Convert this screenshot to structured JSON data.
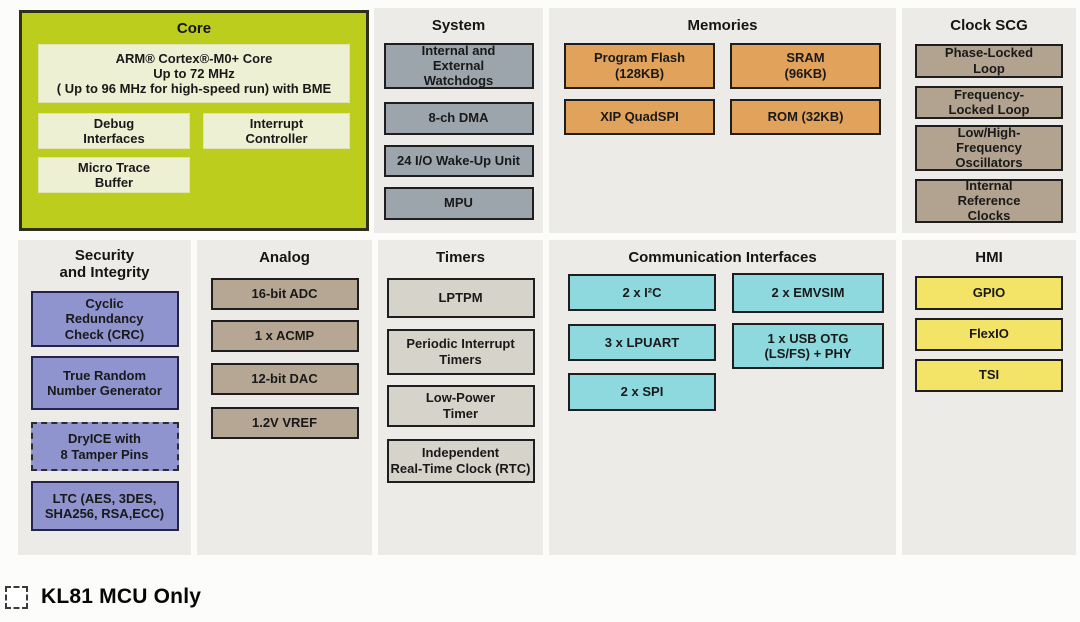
{
  "colors": {
    "core_panel": "#bccd1e",
    "core_box": "#eef0d4",
    "panel_background": "#ecebe8",
    "system_box": "#9da5ac",
    "memory_box": "#e1a35c",
    "clock_box": "#b2a390",
    "security_box": "#8f93ce",
    "analog_box": "#b6a794",
    "timer_box": "#d6d3ca",
    "comm_box": "#8dd9de",
    "hmi_box": "#f3e467"
  },
  "sections": {
    "core": {
      "title": "Core",
      "arm": "ARM® Cortex®-M0+ Core\nUp to 72 MHz\n( Up to 96 MHz for high-speed run) with BME",
      "debug": "Debug\nInterfaces",
      "interrupt": "Interrupt\nController",
      "mtb": "Micro Trace\nBuffer"
    },
    "system": {
      "title": "System",
      "items": [
        "Internal and\nExternal\nWatchdogs",
        "8-ch DMA",
        "24 I/O Wake-Up Unit",
        "MPU"
      ]
    },
    "memories": {
      "title": "Memories",
      "items": [
        "Program Flash\n(128KB)",
        "SRAM\n(96KB)",
        "XIP QuadSPI",
        "ROM (32KB)"
      ]
    },
    "clock_scg": {
      "title": "Clock SCG",
      "items": [
        "Phase-Locked\nLoop",
        "Frequency-\nLocked Loop",
        "Low/High-\nFrequency\nOscillators",
        "Internal\nReference\nClocks"
      ]
    },
    "security": {
      "title": "Security\nand Integrity",
      "items": [
        "Cyclic\nRedundancy\nCheck (CRC)",
        "True Random\nNumber Generator",
        "DryICE with\n8 Tamper Pins",
        "LTC (AES, 3DES,\nSHA256, RSA,ECC)"
      ]
    },
    "analog": {
      "title": "Analog",
      "items": [
        "16-bit ADC",
        "1 x ACMP",
        "12-bit DAC",
        "1.2V VREF"
      ]
    },
    "timers": {
      "title": "Timers",
      "items": [
        "LPTPM",
        "Periodic Interrupt\nTimers",
        "Low-Power\nTimer",
        "Independent\nReal-Time Clock (RTC)"
      ]
    },
    "comm": {
      "title": "Communication Interfaces",
      "items": [
        "2 x I²C",
        "3 x LPUART",
        "2 x SPI",
        "2 x EMVSIM",
        "1 x USB OTG\n(LS/FS) + PHY"
      ]
    },
    "hmi": {
      "title": "HMI",
      "items": [
        "GPIO",
        "FlexIO",
        "TSI"
      ]
    }
  },
  "legend": {
    "label": "KL81 MCU Only"
  }
}
